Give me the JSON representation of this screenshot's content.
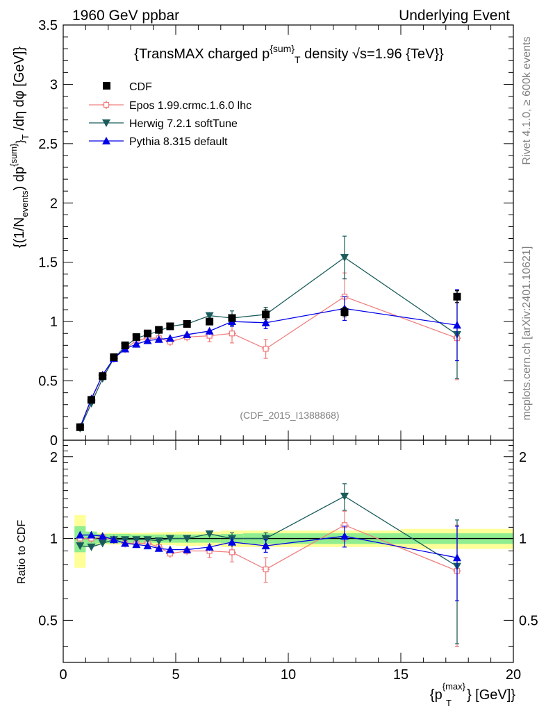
{
  "header": {
    "left": "1960 GeV ppbar",
    "right": "Underlying Event"
  },
  "side": {
    "rivet": "Rivet 4.1.0, ≥ 600k events",
    "mcplots": "mcplots.cern.ch [arXiv:2401.10621]"
  },
  "colors": {
    "cdf": "#000000",
    "epos": "#f08080",
    "herwig": "#1a5c5c",
    "pythia": "#0000e6",
    "band_inner": "#90ee90",
    "band_outer": "#ffff99"
  },
  "chart_data": {
    "type": "scatter",
    "title": "{TransMAX charged p^{sum}_T density √s=1.96 {TeV}}",
    "title_parts": {
      "pre": "{TransMAX charged p",
      "sup": "{sum}",
      "sub": "T",
      "post": " density √s=1.96 {TeV}}"
    },
    "watermark": "(CDF_2015_I1388868)",
    "xlabel": "{p_T^{max}} [GeV]}",
    "xlabel_parts": {
      "pre": "{p",
      "sup": "{max}",
      "sub": "T",
      "post": "} [GeV]}"
    },
    "ylabel": "{(1/N_events) dp^{sum}_T /dη dφ [GeV]}",
    "ylabel_parts": {
      "a": "{(1/N",
      "a_sub": "events",
      "b": ") dp",
      "b_sup": "{sum}",
      "b_sub2": "}",
      "b_sub": "T",
      "c": " /dη  dφ [GeV]}"
    },
    "ratio_ylabel": "Ratio to CDF",
    "xlim": [
      0,
      20
    ],
    "ylim": [
      0,
      3.5
    ],
    "ratio_ylim": [
      0.35,
      2.3
    ],
    "x_ticks": [
      0,
      5,
      10,
      15,
      20
    ],
    "x_tick_labels": [
      "0",
      "5",
      "10",
      "15",
      "20"
    ],
    "y_ticks": [
      0,
      0.5,
      1,
      1.5,
      2,
      2.5,
      3,
      3.5
    ],
    "y_tick_labels": [
      "0",
      "0.5",
      "1",
      "1.5",
      "2",
      "2.5",
      "3",
      "3.5"
    ],
    "ratio_ticks": [
      0.5,
      1,
      2
    ],
    "ratio_tick_labels": [
      "0.5",
      "1",
      "2"
    ],
    "legend": [
      "CDF",
      "Epos 1.99.crmc.1.6.0 lhc",
      "Herwig 7.2.1 softTune",
      "Pythia 8.315 default"
    ],
    "legend_position": "top-left",
    "x": [
      0.75,
      1.25,
      1.75,
      2.25,
      2.75,
      3.25,
      3.75,
      4.25,
      4.75,
      5.5,
      6.5,
      7.5,
      9.0,
      12.5,
      17.5
    ],
    "x_edges": [
      0.5,
      1.0,
      1.5,
      2.0,
      2.5,
      3.0,
      3.5,
      4.0,
      4.5,
      5.0,
      6.0,
      7.0,
      8.0,
      10.0,
      15.0,
      20.0
    ],
    "series": [
      {
        "name": "CDF",
        "marker": "square",
        "values": [
          0.11,
          0.34,
          0.54,
          0.7,
          0.8,
          0.87,
          0.9,
          0.93,
          0.96,
          0.98,
          1.0,
          1.03,
          1.06,
          1.08,
          1.21
        ],
        "errors": [
          0.005,
          0.01,
          0.02,
          0.02,
          0.02,
          0.02,
          0.02,
          0.02,
          0.02,
          0.02,
          0.02,
          0.03,
          0.04,
          0.04,
          0.05
        ]
      },
      {
        "name": "Epos 1.99.crmc.1.6.0 lhc",
        "marker": "open-cross",
        "values": [
          0.11,
          0.34,
          0.55,
          0.69,
          0.77,
          0.84,
          0.86,
          0.86,
          0.83,
          0.87,
          0.88,
          0.9,
          0.77,
          1.21,
          0.86
        ],
        "errors": [
          0.005,
          0.01,
          0.01,
          0.01,
          0.01,
          0.02,
          0.02,
          0.02,
          0.02,
          0.03,
          0.05,
          0.08,
          0.08,
          0.2,
          0.35
        ]
      },
      {
        "name": "Herwig 7.2.1 softTune",
        "marker": "triangle-down",
        "values": [
          0.1,
          0.31,
          0.52,
          0.69,
          0.79,
          0.86,
          0.89,
          0.92,
          0.96,
          0.98,
          1.05,
          1.03,
          1.06,
          1.54,
          0.89
        ],
        "errors": [
          0.005,
          0.01,
          0.01,
          0.01,
          0.01,
          0.01,
          0.01,
          0.01,
          0.02,
          0.02,
          0.03,
          0.06,
          0.06,
          0.18,
          0.37
        ]
      },
      {
        "name": "Pythia 8.315 default",
        "marker": "triangle-up",
        "values": [
          0.11,
          0.35,
          0.55,
          0.69,
          0.77,
          0.81,
          0.84,
          0.85,
          0.86,
          0.89,
          0.92,
          1.0,
          0.99,
          1.11,
          0.97
        ],
        "errors": [
          0.005,
          0.01,
          0.01,
          0.01,
          0.01,
          0.01,
          0.01,
          0.01,
          0.02,
          0.02,
          0.03,
          0.04,
          0.05,
          0.1,
          0.3
        ]
      }
    ],
    "ratio_series": [
      {
        "name": "Epos 1.99.crmc.1.6.0 lhc",
        "values": [
          1.0,
          1.0,
          1.01,
          0.99,
          0.96,
          0.96,
          0.96,
          0.93,
          0.88,
          0.9,
          0.9,
          0.89,
          0.77,
          1.12,
          0.76
        ],
        "errors": [
          0.02,
          0.02,
          0.02,
          0.02,
          0.02,
          0.02,
          0.02,
          0.02,
          0.03,
          0.03,
          0.05,
          0.07,
          0.08,
          0.14,
          0.36
        ]
      },
      {
        "name": "Herwig 7.2.1 softTune",
        "values": [
          0.94,
          0.93,
          0.96,
          0.99,
          0.99,
          0.99,
          0.99,
          0.98,
          1.0,
          1.0,
          1.04,
          1.0,
          1.0,
          1.43,
          0.79
        ],
        "errors": [
          0.02,
          0.02,
          0.02,
          0.02,
          0.02,
          0.02,
          0.02,
          0.02,
          0.02,
          0.02,
          0.03,
          0.05,
          0.05,
          0.16,
          0.38
        ]
      },
      {
        "name": "Pythia 8.315 default",
        "values": [
          1.03,
          1.03,
          1.02,
          0.99,
          0.96,
          0.95,
          0.94,
          0.92,
          0.91,
          0.91,
          0.93,
          0.97,
          0.94,
          1.02,
          0.85
        ],
        "errors": [
          0.02,
          0.02,
          0.02,
          0.02,
          0.02,
          0.02,
          0.02,
          0.02,
          0.02,
          0.02,
          0.03,
          0.04,
          0.05,
          0.09,
          0.26
        ]
      }
    ],
    "ratio_band_inner": [
      0.11,
      0.06,
      0.04,
      0.04,
      0.04,
      0.035,
      0.035,
      0.035,
      0.035,
      0.035,
      0.035,
      0.04,
      0.045,
      0.045,
      0.045
    ],
    "ratio_band_outer": [
      0.22,
      0.06,
      0.05,
      0.05,
      0.05,
      0.05,
      0.05,
      0.055,
      0.055,
      0.06,
      0.06,
      0.07,
      0.07,
      0.07,
      0.085
    ]
  }
}
